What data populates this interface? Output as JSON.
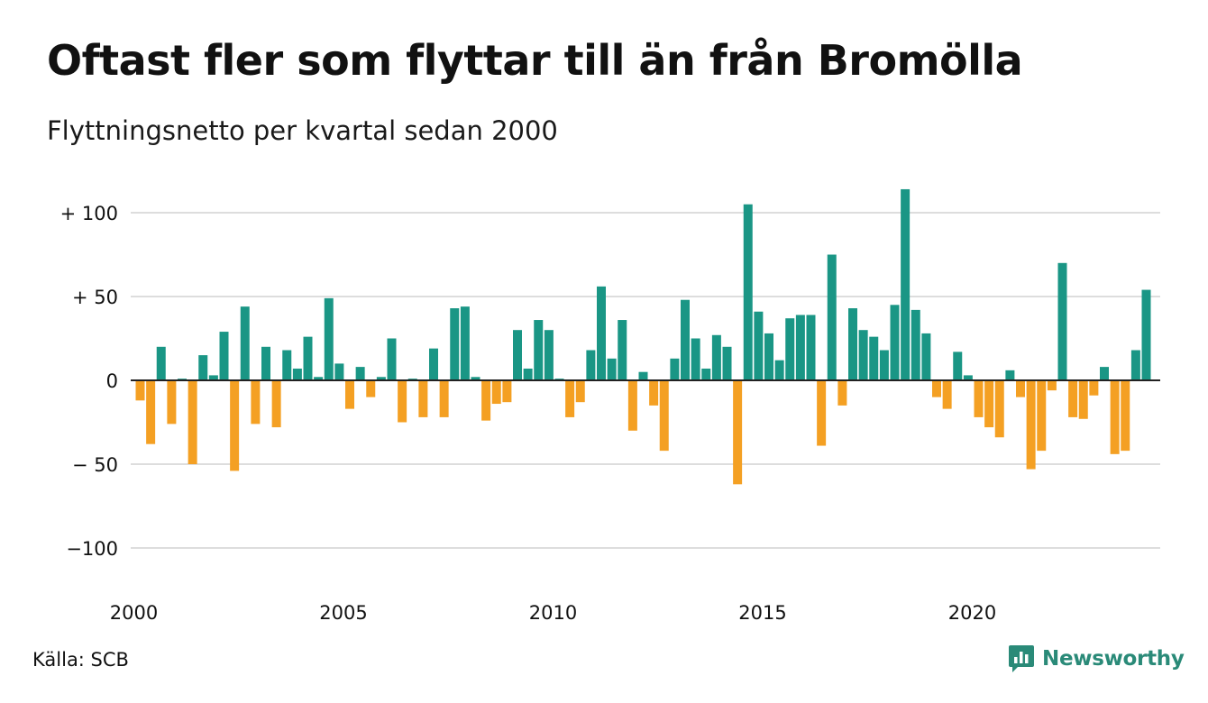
{
  "header": {
    "title": "Oftast fler som flyttar till än från Bromölla",
    "subtitle": "Flyttningsnetto per kvartal sedan 2000"
  },
  "footer": {
    "source": "Källa: SCB",
    "brand": "Newsworthy",
    "brand_icon": "newsworthy-logo-icon"
  },
  "colors": {
    "positive": "#1a9685",
    "negative": "#f4a023",
    "grid": "#dddddd",
    "zero_line": "#222222",
    "text": "#111111"
  },
  "chart_data": {
    "type": "bar",
    "title": "Oftast fler som flyttar till än från Bromölla",
    "subtitle": "Flyttningsnetto per kvartal sedan 2000",
    "x_start": "2000 Q1",
    "x_ticks": [
      "2000",
      "2005",
      "2010",
      "2015",
      "2020"
    ],
    "y_ticks": [
      {
        "value": 100,
        "label": "+ 100"
      },
      {
        "value": 50,
        "label": "+  50"
      },
      {
        "value": 0,
        "label": "0"
      },
      {
        "value": -50,
        "label": "− 50"
      },
      {
        "value": -100,
        "label": "−100"
      }
    ],
    "ylim": [
      -100,
      100
    ],
    "grid": true,
    "values": [
      -12,
      -38,
      20,
      -26,
      1,
      -50,
      15,
      3,
      29,
      -54,
      44,
      -26,
      20,
      -28,
      18,
      7,
      26,
      2,
      49,
      10,
      -17,
      8,
      -10,
      2,
      25,
      -25,
      1,
      -22,
      19,
      -22,
      43,
      44,
      2,
      -24,
      -14,
      -13,
      30,
      7,
      36,
      30,
      1,
      -22,
      -13,
      18,
      56,
      13,
      36,
      -30,
      5,
      -15,
      -42,
      13,
      48,
      25,
      7,
      27,
      20,
      -62,
      105,
      41,
      28,
      12,
      37,
      39,
      39,
      -39,
      75,
      -15,
      43,
      30,
      26,
      18,
      45,
      114,
      42,
      28,
      -10,
      -17,
      17,
      3,
      -22,
      -28,
      -34,
      6,
      -10,
      -53,
      -42,
      -6,
      70,
      -22,
      -23,
      -9,
      8,
      -44,
      -42,
      18,
      54
    ]
  }
}
